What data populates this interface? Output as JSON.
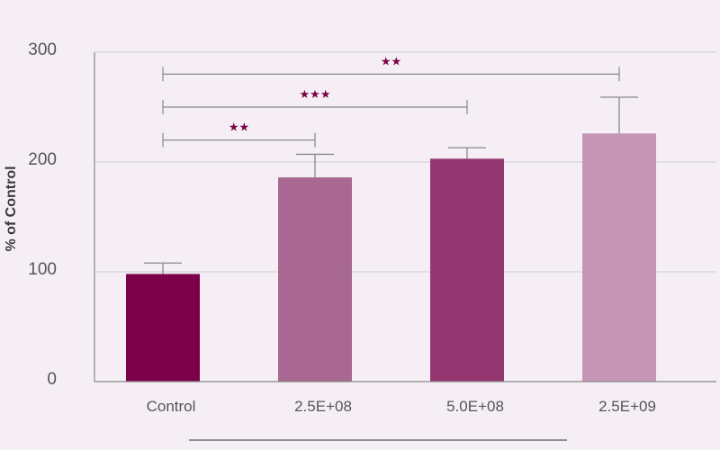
{
  "colors": {
    "background": "#f5eff5",
    "grid": "#cccccc",
    "axis": "#888888",
    "bracket": "#888888",
    "error_bar": "#888888",
    "star": "#7b0046",
    "bottom_rule": "#555555"
  },
  "chart_data": {
    "type": "bar",
    "title": "",
    "xlabel": "",
    "ylabel": "% of Control",
    "ylim": [
      0,
      300
    ],
    "yticks": [
      0,
      100,
      200,
      300
    ],
    "ytick_labels": [
      "0",
      "100",
      "200",
      "300"
    ],
    "grid": true,
    "legend": "none",
    "categories": [
      "Control",
      "2.5E+08",
      "5.0E+08",
      "2.5E+09"
    ],
    "values": [
      98,
      186,
      203,
      226
    ],
    "errors": [
      10,
      21,
      10,
      33
    ],
    "bar_colors": [
      "#7d004a",
      "#a96891",
      "#94366f",
      "#c796b6"
    ],
    "significance": [
      {
        "from": "Control",
        "to": "2.5E+08",
        "y": 220,
        "label": "★★"
      },
      {
        "from": "Control",
        "to": "5.0E+08",
        "y": 250,
        "label": "★★★"
      },
      {
        "from": "Control",
        "to": "2.5E+09",
        "y": 280,
        "label": "★★"
      }
    ]
  }
}
